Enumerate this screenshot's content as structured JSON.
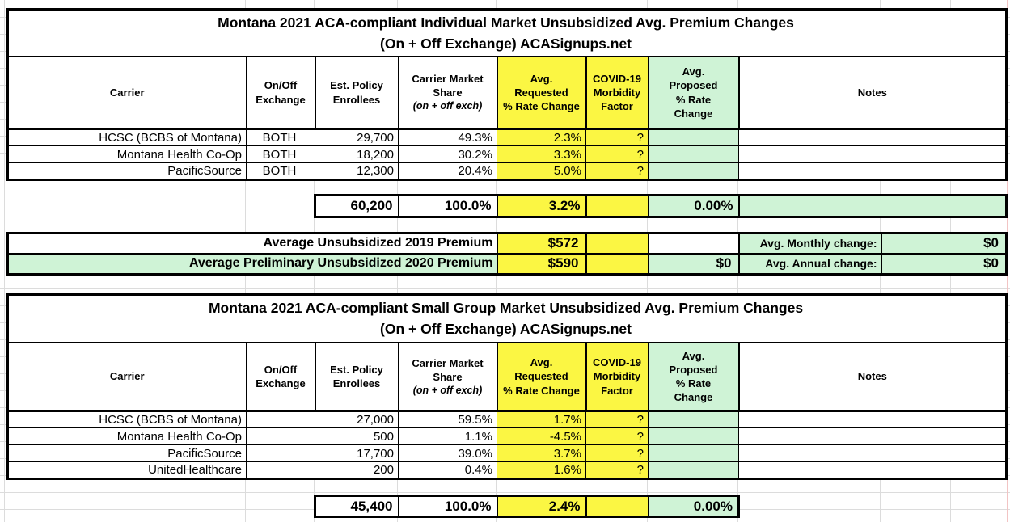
{
  "theme": {
    "yellow": "#fbf643",
    "green": "#cff3d6",
    "grid_line": "#dcdcdc",
    "page_break_line": "#f2c4c4",
    "border": "#000000",
    "background": "#ffffff"
  },
  "headers": {
    "carrier": "Carrier",
    "exchange": "On/Off\nExchange",
    "enrollees": "Est. Policy\nEnrollees",
    "market_share": "Carrier Market\nShare",
    "market_share_sub": "(on + off exch)",
    "requested": "Avg.\nRequested\n% Rate Change",
    "covid": "COVID-19\nMorbidity\nFactor",
    "proposed": "Avg.\nProposed\n% Rate\nChange",
    "notes": "Notes"
  },
  "table1": {
    "title": "Montana 2021 ACA-compliant Individual Market Unsubsidized Avg. Premium Changes\n(On + Off Exchange) ACASignups.net",
    "rows": [
      {
        "carrier": "HCSC (BCBS of Montana)",
        "exchange": "BOTH",
        "enrollees": "29,700",
        "market_share": "49.3%",
        "requested": "2.3%",
        "covid": "?",
        "proposed": "",
        "notes": ""
      },
      {
        "carrier": "Montana Health Co-Op",
        "exchange": "BOTH",
        "enrollees": "18,200",
        "market_share": "30.2%",
        "requested": "3.3%",
        "covid": "?",
        "proposed": "",
        "notes": ""
      },
      {
        "carrier": "PacificSource",
        "exchange": "BOTH",
        "enrollees": "12,300",
        "market_share": "20.4%",
        "requested": "5.0%",
        "covid": "?",
        "proposed": "",
        "notes": ""
      }
    ],
    "total": {
      "enrollees": "60,200",
      "market_share": "100.0%",
      "requested": "3.2%",
      "covid": "",
      "proposed": "0.00%",
      "notes": ""
    }
  },
  "summary": {
    "row_2019": {
      "label": "Average Unsubsidized 2019 Premium",
      "premium": "$572",
      "covid": "",
      "proposed": "",
      "change_label": "Avg. Monthly change:",
      "change_value": "$0"
    },
    "row_2020": {
      "label": "Average Preliminary Unsubsidized 2020 Premium",
      "premium": "$590",
      "covid": "",
      "proposed": "$0",
      "change_label": "Avg. Annual change:",
      "change_value": "$0"
    }
  },
  "table2": {
    "title": "Montana 2021 ACA-compliant Small Group Market Unsubsidized Avg. Premium Changes\n(On + Off Exchange) ACASignups.net",
    "rows": [
      {
        "carrier": "HCSC (BCBS of Montana)",
        "exchange": "",
        "enrollees": "27,000",
        "market_share": "59.5%",
        "requested": "1.7%",
        "covid": "?",
        "proposed": "",
        "notes": ""
      },
      {
        "carrier": "Montana Health Co-Op",
        "exchange": "",
        "enrollees": "500",
        "market_share": "1.1%",
        "requested": "-4.5%",
        "covid": "?",
        "proposed": "",
        "notes": ""
      },
      {
        "carrier": "PacificSource",
        "exchange": "",
        "enrollees": "17,700",
        "market_share": "39.0%",
        "requested": "3.7%",
        "covid": "?",
        "proposed": "",
        "notes": ""
      },
      {
        "carrier": "UnitedHealthcare",
        "exchange": "",
        "enrollees": "200",
        "market_share": "0.4%",
        "requested": "1.6%",
        "covid": "?",
        "proposed": "",
        "notes": ""
      }
    ],
    "total": {
      "enrollees": "45,400",
      "market_share": "100.0%",
      "requested": "2.4%",
      "covid": "",
      "proposed": "0.00%"
    }
  }
}
